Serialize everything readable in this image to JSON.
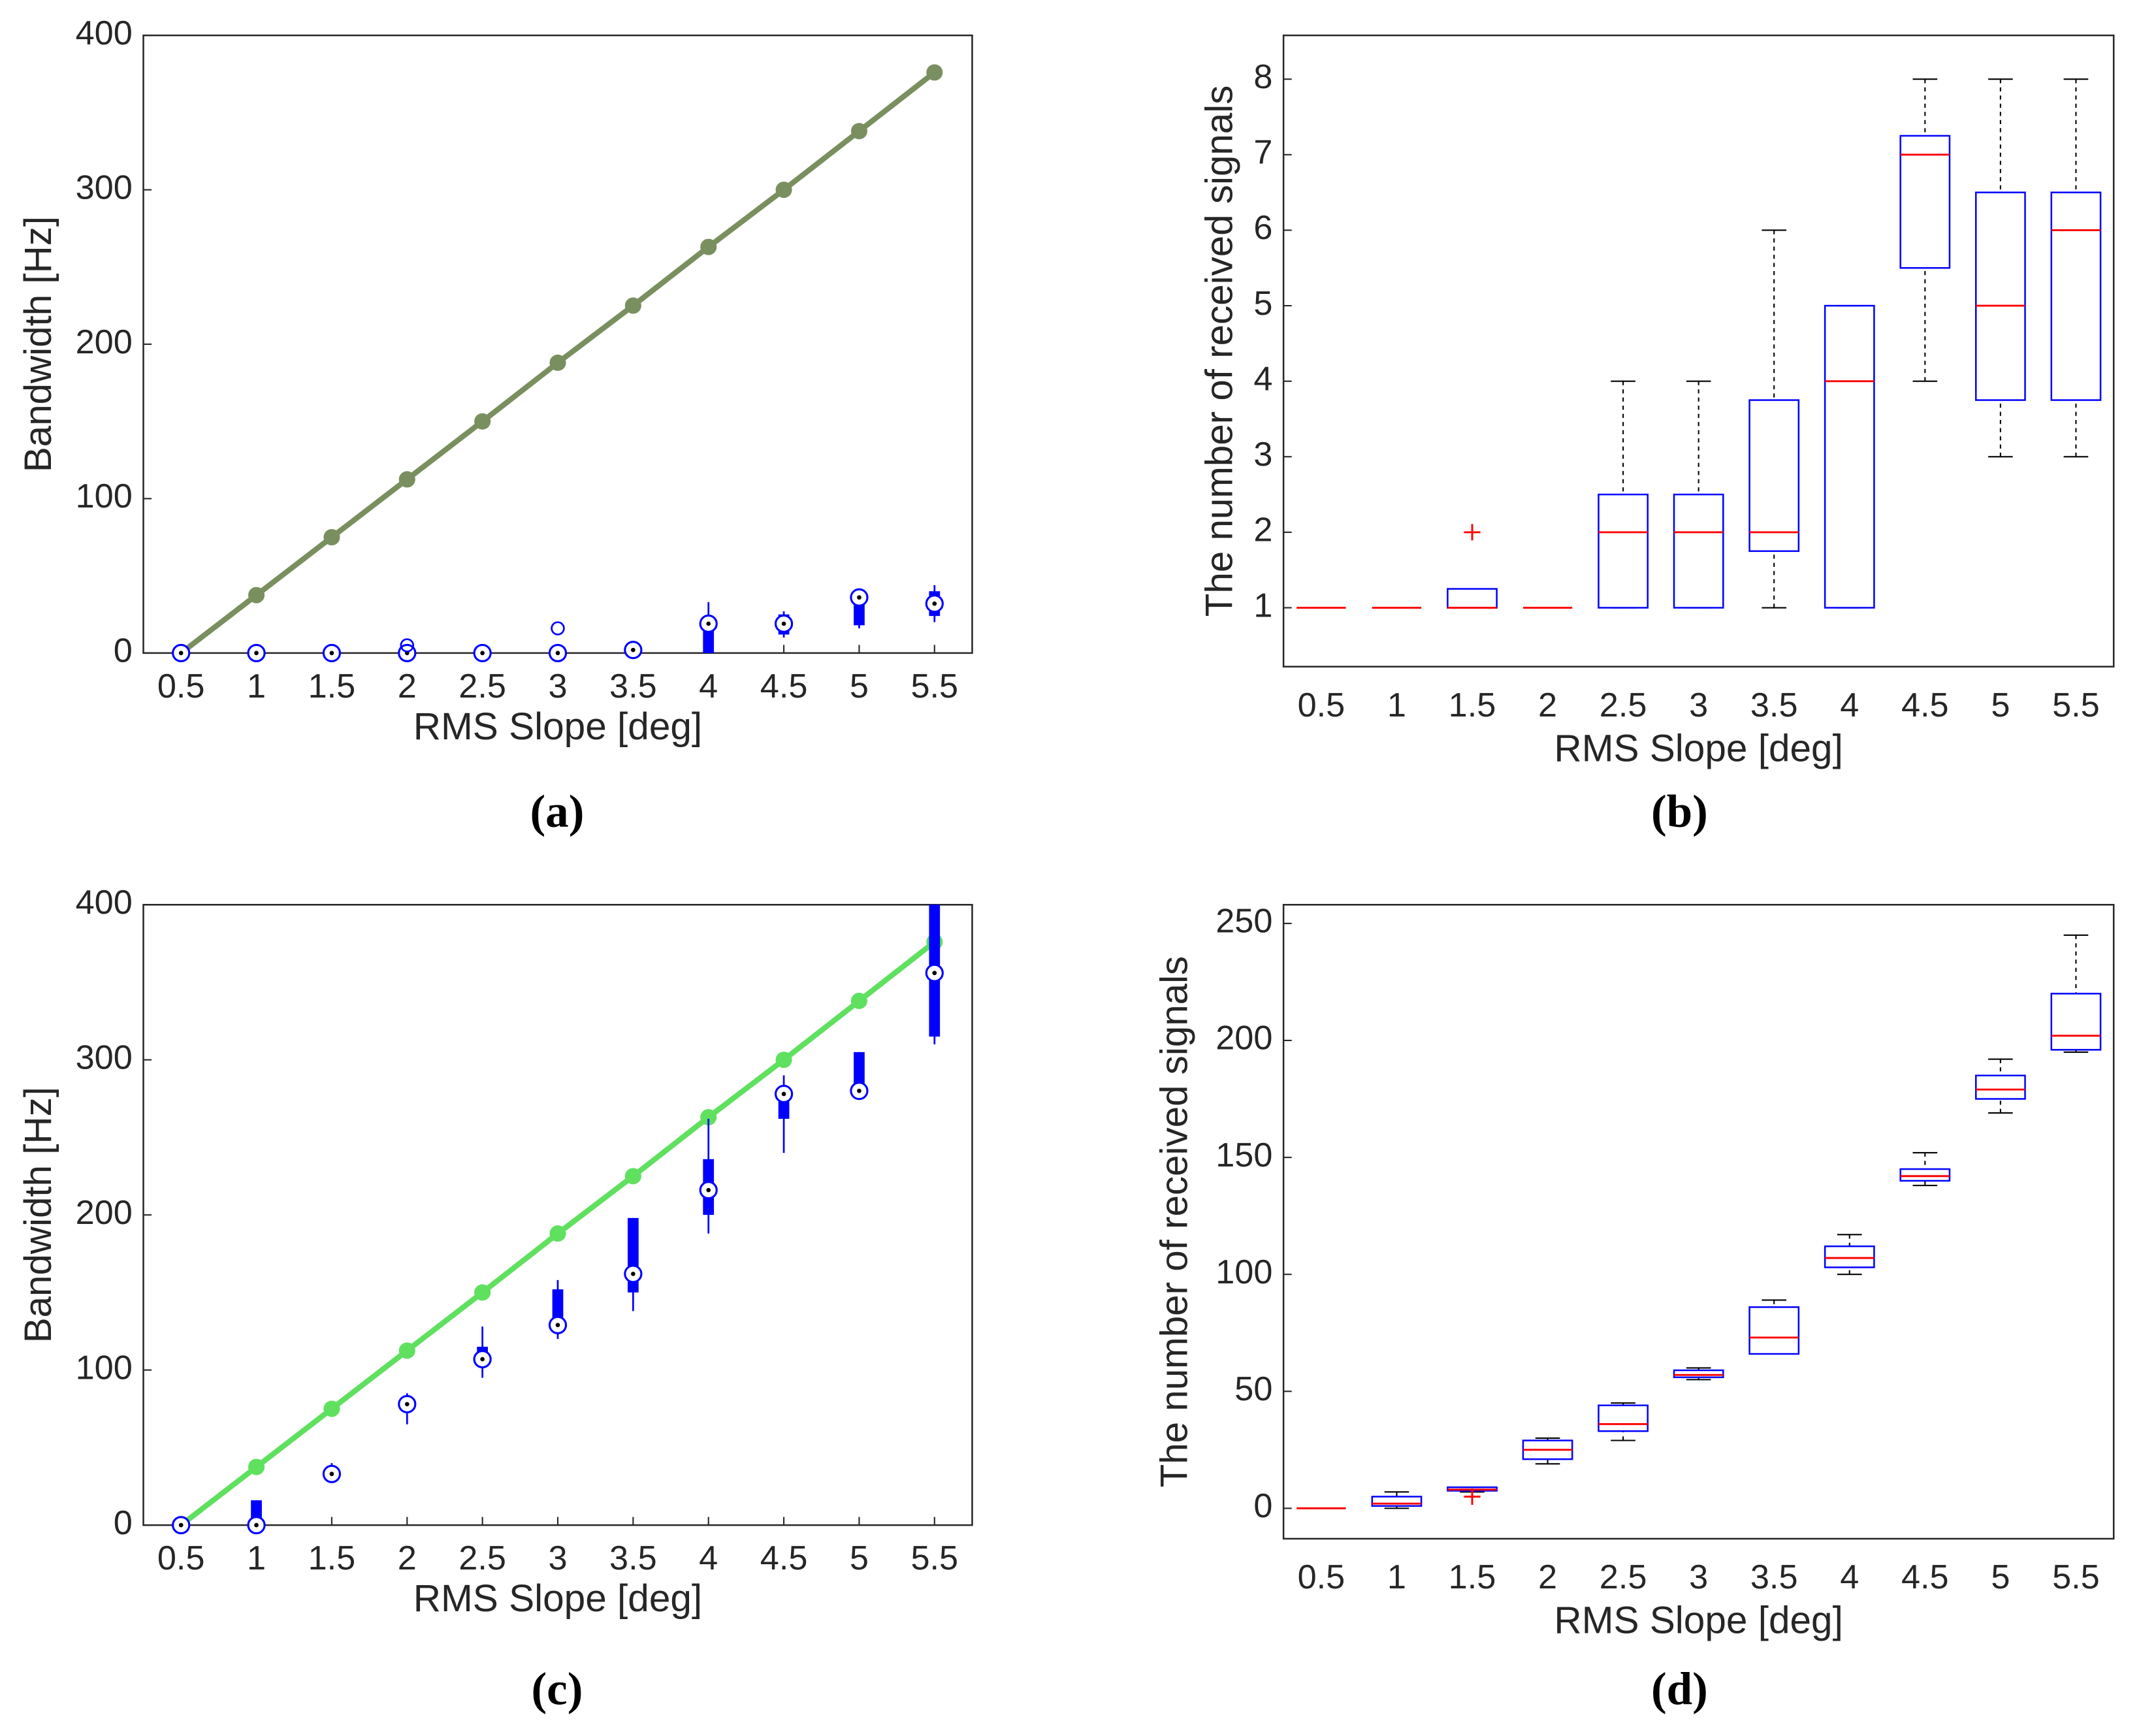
{
  "chart_data": [
    {
      "type": "box",
      "box_style": "compact",
      "caption": "(a)",
      "x_label": "RMS Slope [deg]",
      "y_label": "Bandwidth [Hz]",
      "x": [
        0.5,
        1,
        1.5,
        2,
        2.5,
        3,
        3.5,
        4,
        4.5,
        5,
        5.5
      ],
      "xlim": [
        0.25,
        5.75
      ],
      "xticks": [
        0.5,
        1,
        1.5,
        2,
        2.5,
        3,
        3.5,
        4,
        4.5,
        5,
        5.5
      ],
      "ylim": [
        0,
        400
      ],
      "yticks": [
        0,
        100,
        200,
        300,
        400
      ],
      "line": {
        "color": "#7a8f5f",
        "values": [
          0,
          37.5,
          75,
          112.5,
          150,
          188,
          225,
          263,
          300,
          338,
          376
        ]
      },
      "boxes": {
        "color": "#0000ff",
        "min": [
          0,
          0,
          0,
          0,
          0,
          0,
          0,
          0,
          10,
          16,
          20
        ],
        "q1": [
          0,
          0,
          0,
          0,
          0,
          0,
          0,
          0,
          12,
          18,
          24
        ],
        "median": [
          0,
          0,
          0,
          0,
          0,
          0,
          2,
          19,
          19,
          36,
          32
        ],
        "q3": [
          0,
          0,
          0,
          0,
          0,
          0,
          2,
          19,
          25,
          36,
          40
        ],
        "max": [
          0,
          0,
          0,
          0,
          0,
          0,
          6,
          33,
          27,
          40,
          44
        ],
        "outliers": [
          [],
          [],
          [],
          [
            5
          ],
          [],
          [
            16
          ],
          [],
          [],
          [],
          [],
          []
        ]
      }
    },
    {
      "type": "box",
      "box_style": "standard",
      "caption": "(b)",
      "x_label": "RMS Slope [deg]",
      "y_label": "The number of received signals",
      "categories": [
        "0.5",
        "1",
        "1.5",
        "2",
        "2.5",
        "3",
        "3.5",
        "4",
        "4.5",
        "5",
        "5.5"
      ],
      "ylim": [
        0.22,
        8.58
      ],
      "yticks": [
        1,
        2,
        3,
        4,
        5,
        6,
        7,
        8
      ],
      "boxes": {
        "color": "#0000ff",
        "median_color": "#ff0000",
        "whisker_color": "#000000",
        "min": [
          1,
          1,
          1,
          1,
          1,
          1,
          1,
          1,
          4,
          3,
          3
        ],
        "q1": [
          1,
          1,
          1,
          1,
          1,
          1,
          1.75,
          1,
          5.5,
          3.75,
          3.75
        ],
        "median": [
          1,
          1,
          1,
          1,
          2,
          2,
          2,
          4,
          7,
          5,
          6
        ],
        "q3": [
          1,
          1,
          1.25,
          1,
          2.5,
          2.5,
          3.75,
          5,
          7.25,
          6.5,
          6.5
        ],
        "max": [
          1,
          1,
          1.25,
          1,
          4,
          4,
          6,
          5,
          8,
          8,
          8
        ],
        "outliers": [
          [],
          [],
          [
            2
          ],
          [],
          [],
          [],
          [],
          [],
          [],
          [],
          []
        ]
      }
    },
    {
      "type": "box",
      "box_style": "compact",
      "caption": "(c)",
      "x_label": "RMS Slope [deg]",
      "y_label": "Bandwidth [Hz]",
      "x": [
        0.5,
        1,
        1.5,
        2,
        2.5,
        3,
        3.5,
        4,
        4.5,
        5,
        5.5
      ],
      "xlim": [
        0.25,
        5.75
      ],
      "xticks": [
        0.5,
        1,
        1.5,
        2,
        2.5,
        3,
        3.5,
        4,
        4.5,
        5,
        5.5
      ],
      "ylim": [
        0,
        400
      ],
      "yticks": [
        0,
        100,
        200,
        300,
        400
      ],
      "line": {
        "color": "#5fe05f",
        "values": [
          0,
          37.5,
          75,
          112.5,
          150,
          188,
          225,
          263,
          300,
          338,
          376
        ]
      },
      "boxes": {
        "color": "#0000ff",
        "min": [
          0,
          0,
          30,
          65,
          95,
          120,
          138,
          188,
          240,
          280,
          310
        ],
        "q1": [
          0,
          0,
          33,
          78,
          107,
          129,
          150,
          200,
          262,
          280,
          315
        ],
        "median": [
          0,
          0,
          33,
          78,
          107,
          129,
          162,
          216,
          278,
          280,
          356
        ],
        "q3": [
          0,
          16,
          33,
          78,
          115,
          152,
          198,
          236,
          280,
          305,
          400
        ],
        "max": [
          0,
          16,
          40,
          85,
          128,
          158,
          198,
          262,
          290,
          305,
          400
        ],
        "outliers": [
          [],
          [],
          [],
          [],
          [],
          [],
          [],
          [],
          [],
          [],
          []
        ]
      }
    },
    {
      "type": "box",
      "box_style": "standard",
      "caption": "(d)",
      "x_label": "RMS Slope [deg]",
      "y_label": "The number of received signals",
      "categories": [
        "0.5",
        "1",
        "1.5",
        "2",
        "2.5",
        "3",
        "3.5",
        "4",
        "4.5",
        "5",
        "5.5"
      ],
      "ylim": [
        -13,
        258
      ],
      "yticks": [
        0,
        50,
        100,
        150,
        200,
        250
      ],
      "boxes": {
        "color": "#0000ff",
        "median_color": "#ff0000",
        "whisker_color": "#000000",
        "min": [
          0,
          0,
          7,
          19,
          29,
          55,
          66,
          100,
          138,
          169,
          195
        ],
        "q1": [
          0,
          1,
          7.5,
          21,
          33,
          56,
          66,
          103,
          140,
          175,
          196
        ],
        "median": [
          0,
          2,
          8,
          25,
          36,
          57,
          73,
          107,
          142,
          179,
          202
        ],
        "q3": [
          0,
          5,
          9,
          29,
          44,
          59,
          86,
          112,
          145,
          185,
          220
        ],
        "max": [
          0,
          7,
          9,
          30,
          45,
          60,
          89,
          117,
          152,
          192,
          245
        ],
        "outliers": [
          [],
          [],
          [
            5
          ],
          [],
          [],
          [],
          [],
          [],
          [],
          [],
          []
        ]
      }
    }
  ]
}
